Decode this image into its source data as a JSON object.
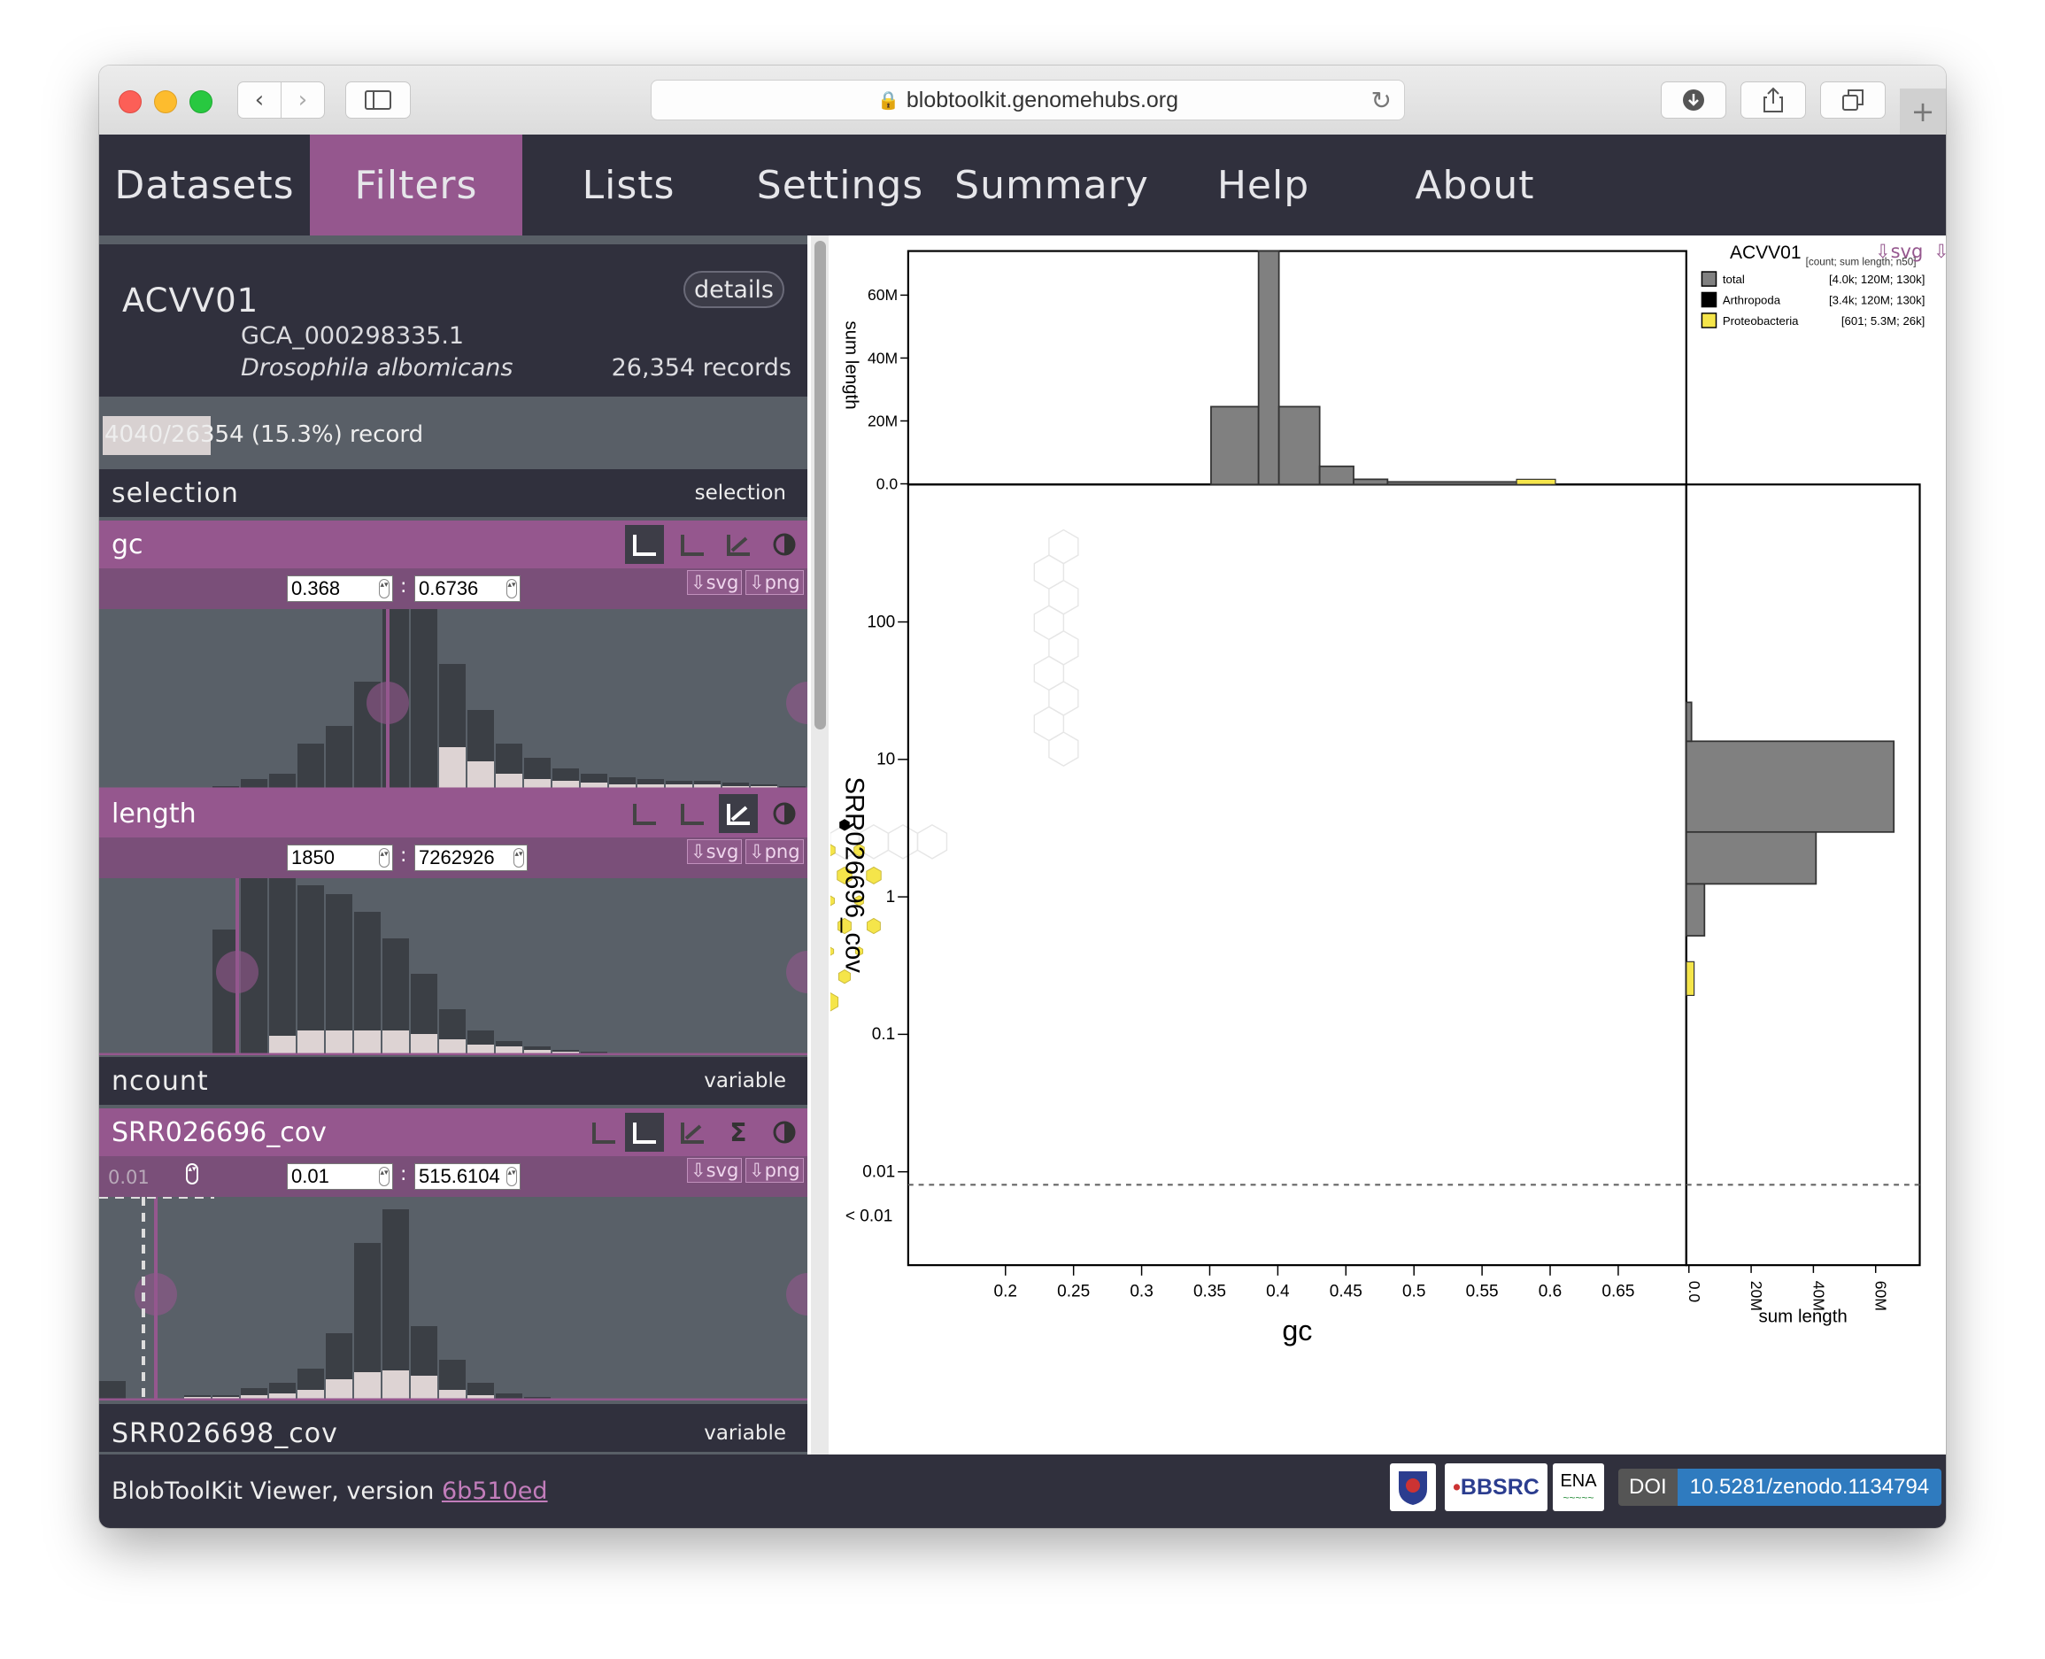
{
  "browser": {
    "url": "blobtoolkit.genomehubs.org"
  },
  "nav": {
    "tabs": [
      "Datasets",
      "Filters",
      "Lists",
      "Settings",
      "Summary",
      "Help",
      "About"
    ],
    "active": "Filters"
  },
  "dataset": {
    "id": "ACVV01",
    "details_label": "details",
    "accession": "GCA_000298335.1",
    "species": "Drosophila albomicans",
    "records": "26,354 records"
  },
  "selection_summary": {
    "count_text": "4040/26354 (15.3%) record",
    "fraction": 0.153
  },
  "sections": {
    "selection": {
      "title": "selection",
      "type": "selection"
    },
    "ncount": {
      "title": "ncount",
      "type": "variable"
    },
    "next": {
      "title": "SRR026698_cov",
      "type": "variable"
    }
  },
  "filters": {
    "gc": {
      "title": "gc",
      "min": "0.368",
      "max": "0.6736"
    },
    "length": {
      "title": "length",
      "min": "1850",
      "max": "7262926"
    },
    "cov": {
      "title": "SRR026696_cov",
      "min": "0.01",
      "max": "515.6104",
      "threshold": "0.01"
    }
  },
  "download": {
    "svg": "⇩svg",
    "png": "⇩png"
  },
  "plot": {
    "legend_title": "ACVV01",
    "legend_header": "[count; sum length; n50]",
    "legend": [
      {
        "name": "total",
        "stats": "[4.0k; 120M; 130k]",
        "color": "#808080"
      },
      {
        "name": "Arthropoda",
        "stats": "[3.4k; 120M; 130k]",
        "color": "#000000"
      },
      {
        "name": "Proteobacteria",
        "stats": "[601; 5.3M; 26k]",
        "color": "#f5e54a"
      }
    ],
    "x_label": "gc",
    "y_label": "SRR026696_cov",
    "top_y_label": "sum length",
    "right_x_label": "sum length",
    "x_ticks": [
      "0.2",
      "0.25",
      "0.3",
      "0.35",
      "0.4",
      "0.45",
      "0.5",
      "0.55",
      "0.6",
      "0.65"
    ],
    "y_ticks": [
      "100",
      "10",
      "1",
      "0.1",
      "0.01"
    ],
    "y_below": "< 0.01",
    "top_ticks": [
      "60M",
      "40M",
      "20M",
      "0.0"
    ],
    "right_ticks": [
      "0.0",
      "20M",
      "40M",
      "60M"
    ]
  },
  "footer": {
    "text": "BlobToolKit Viewer, version",
    "version": "6b510ed",
    "bbsrc": "BBSRC",
    "ena": "ENA",
    "doi_label": "DOI",
    "doi": "10.5281/zenodo.1134794"
  }
}
